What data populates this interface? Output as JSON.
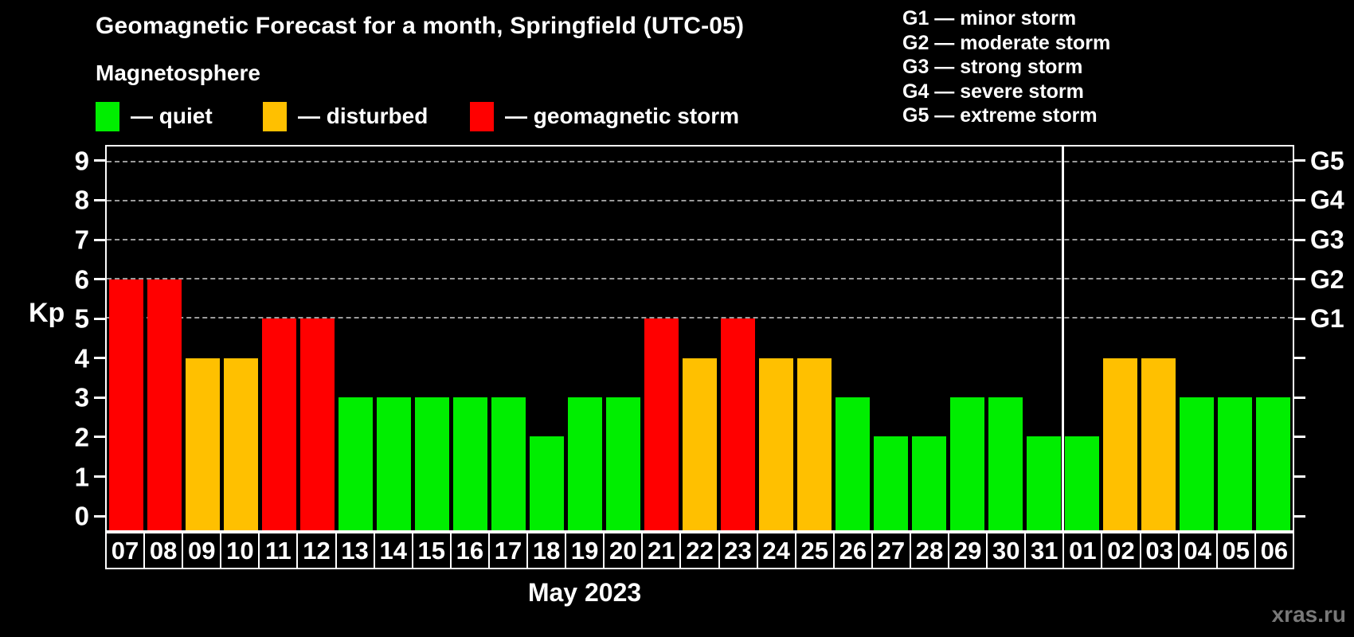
{
  "header": {
    "title": "Geomagnetic Forecast for a month, Springfield (UTC-05)",
    "subtitle": "Magnetosphere",
    "legend": [
      {
        "status": "quiet",
        "label": "— quiet"
      },
      {
        "status": "disturbed",
        "label": "— disturbed"
      },
      {
        "status": "storm",
        "label": "— geomagnetic storm"
      }
    ],
    "g_scale_legend": [
      "G1 — minor storm",
      "G2 — moderate storm",
      "G3 — strong storm",
      "G4 — severe storm",
      "G5 — extreme storm"
    ]
  },
  "colors": {
    "quiet": "#00ee00",
    "disturbed": "#ffc000",
    "storm": "#ff0000",
    "grid": "#9b9b9b",
    "axis": "#ffffff",
    "watermark": "#787878"
  },
  "chart_data": {
    "type": "bar",
    "title": "Geomagnetic Forecast for a month, Springfield (UTC-05)",
    "xlabel": "May 2023",
    "ylabel": "Kp",
    "ylim": [
      -0.4,
      9.4
    ],
    "yticks": [
      0,
      1,
      2,
      3,
      4,
      5,
      6,
      7,
      8,
      9
    ],
    "gridlines_at": [
      5,
      6,
      7,
      8,
      9
    ],
    "g_levels": [
      {
        "kp": 5,
        "label": "G1"
      },
      {
        "kp": 6,
        "label": "G2"
      },
      {
        "kp": 7,
        "label": "G3"
      },
      {
        "kp": 8,
        "label": "G4"
      },
      {
        "kp": 9,
        "label": "G5"
      }
    ],
    "month_boundary_index": 25,
    "days": [
      {
        "day": "07",
        "kp": 6,
        "status": "storm"
      },
      {
        "day": "08",
        "kp": 6,
        "status": "storm"
      },
      {
        "day": "09",
        "kp": 4,
        "status": "disturbed"
      },
      {
        "day": "10",
        "kp": 4,
        "status": "disturbed"
      },
      {
        "day": "11",
        "kp": 5,
        "status": "storm"
      },
      {
        "day": "12",
        "kp": 5,
        "status": "storm"
      },
      {
        "day": "13",
        "kp": 3,
        "status": "quiet"
      },
      {
        "day": "14",
        "kp": 3,
        "status": "quiet"
      },
      {
        "day": "15",
        "kp": 3,
        "status": "quiet"
      },
      {
        "day": "16",
        "kp": 3,
        "status": "quiet"
      },
      {
        "day": "17",
        "kp": 3,
        "status": "quiet"
      },
      {
        "day": "18",
        "kp": 2,
        "status": "quiet"
      },
      {
        "day": "19",
        "kp": 3,
        "status": "quiet"
      },
      {
        "day": "20",
        "kp": 3,
        "status": "quiet"
      },
      {
        "day": "21",
        "kp": 5,
        "status": "storm"
      },
      {
        "day": "22",
        "kp": 4,
        "status": "disturbed"
      },
      {
        "day": "23",
        "kp": 5,
        "status": "storm"
      },
      {
        "day": "24",
        "kp": 4,
        "status": "disturbed"
      },
      {
        "day": "25",
        "kp": 4,
        "status": "disturbed"
      },
      {
        "day": "26",
        "kp": 3,
        "status": "quiet"
      },
      {
        "day": "27",
        "kp": 2,
        "status": "quiet"
      },
      {
        "day": "28",
        "kp": 2,
        "status": "quiet"
      },
      {
        "day": "29",
        "kp": 3,
        "status": "quiet"
      },
      {
        "day": "30",
        "kp": 3,
        "status": "quiet"
      },
      {
        "day": "31",
        "kp": 2,
        "status": "quiet"
      },
      {
        "day": "01",
        "kp": 2,
        "status": "quiet"
      },
      {
        "day": "02",
        "kp": 4,
        "status": "disturbed"
      },
      {
        "day": "03",
        "kp": 4,
        "status": "disturbed"
      },
      {
        "day": "04",
        "kp": 3,
        "status": "quiet"
      },
      {
        "day": "05",
        "kp": 3,
        "status": "quiet"
      },
      {
        "day": "06",
        "kp": 3,
        "status": "quiet"
      }
    ]
  },
  "footer": {
    "watermark": "xras.ru"
  }
}
